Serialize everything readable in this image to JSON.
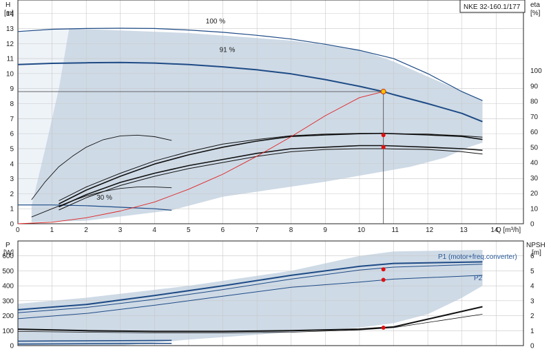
{
  "chart_data": [
    {
      "type": "line",
      "badge": "NKE 32-160.1/177",
      "xlabel": "Q [m³/h]",
      "ylabel_left_symbol": "H",
      "ylabel_left_unit": "[m]",
      "ylabel_right_symbol": "eta",
      "ylabel_right_unit": "[%]",
      "x_ticks": [
        "0",
        "1",
        "2",
        "3",
        "4",
        "5",
        "6",
        "7",
        "8",
        "9",
        "10",
        "11",
        "12",
        "13",
        "14"
      ],
      "y_left_ticks": [
        "0",
        "1",
        "2",
        "3",
        "4",
        "5",
        "6",
        "7",
        "8",
        "9",
        "10",
        "11",
        "12",
        "13",
        "14"
      ],
      "y_right_ticks": [
        "0",
        "10",
        "20",
        "30",
        "40",
        "50",
        "60",
        "70",
        "80",
        "90",
        "100"
      ],
      "xlim": [
        0,
        14.8
      ],
      "ylim_left": [
        0,
        14.9
      ],
      "ylim_right": [
        0,
        100
      ],
      "grid": true,
      "annotations": [
        {
          "text": "100 %",
          "x": 5.5,
          "y": 13.35
        },
        {
          "text": "91 %",
          "x": 5.9,
          "y": 11.45
        },
        {
          "text": "30 %",
          "x": 2.3,
          "y": 1.6
        }
      ],
      "operating_point": {
        "q": 10.7,
        "h": 8.8,
        "eta_points": [
          5.9,
          5.1
        ]
      },
      "envelope": [
        [
          0,
          12.8
        ],
        [
          1.5,
          13.0
        ],
        [
          5,
          12.7
        ],
        [
          8,
          12.2
        ],
        [
          10,
          11.6
        ],
        [
          11,
          10.8
        ],
        [
          12,
          9.8
        ],
        [
          13.6,
          8.2
        ],
        [
          13.6,
          5.4
        ],
        [
          13.2,
          5.1
        ],
        [
          12.5,
          4.4
        ],
        [
          11.5,
          3.8
        ],
        [
          9,
          2.8
        ],
        [
          6,
          1.8
        ],
        [
          4.5,
          0.9
        ],
        [
          2,
          0.2
        ],
        [
          0.4,
          0.1
        ],
        [
          0.4,
          1.2
        ],
        [
          0,
          1.2
        ]
      ],
      "series": [
        {
          "name": "100 %",
          "x": [
            0,
            1,
            2,
            3,
            4,
            5,
            6,
            7,
            8,
            9,
            10,
            11,
            12,
            13,
            13.6
          ],
          "y": [
            12.8,
            12.95,
            13.0,
            13.02,
            13.0,
            12.9,
            12.75,
            12.55,
            12.3,
            11.95,
            11.55,
            11.0,
            10.0,
            8.8,
            8.2
          ]
        },
        {
          "name": "91 %",
          "x": [
            0,
            1,
            2,
            3,
            4,
            5,
            6,
            7,
            8,
            9,
            10,
            10.7,
            11,
            12,
            13,
            13.6
          ],
          "y": [
            10.6,
            10.68,
            10.72,
            10.74,
            10.7,
            10.6,
            10.45,
            10.25,
            9.98,
            9.6,
            9.15,
            8.8,
            8.6,
            8.0,
            7.35,
            6.8
          ]
        },
        {
          "name": "30 %",
          "x": [
            0,
            1,
            2,
            3,
            4,
            4.5
          ],
          "y": [
            1.25,
            1.25,
            1.2,
            1.1,
            1.0,
            0.9
          ]
        },
        {
          "name": "",
          "axis": "left",
          "x": [
            0.4,
            0.8,
            1.2,
            1.6,
            2,
            2.5,
            3,
            3.5,
            4,
            4.5
          ],
          "y": [
            1.6,
            2.8,
            3.8,
            4.5,
            5.1,
            5.6,
            5.85,
            5.9,
            5.8,
            5.55
          ]
        },
        {
          "name": "",
          "axis": "left",
          "x": [
            0.4,
            1,
            1.5,
            2,
            2.5,
            3,
            3.5,
            4,
            4.5
          ],
          "y": [
            0.45,
            1.0,
            1.45,
            1.85,
            2.15,
            2.35,
            2.45,
            2.45,
            2.4
          ]
        },
        {
          "name": "",
          "axis": "right",
          "x": [
            1.2,
            2,
            3,
            4,
            5,
            6,
            7,
            8,
            9,
            10,
            10.7,
            11,
            12,
            13,
            13.6
          ],
          "y": [
            9,
            17,
            25,
            31,
            36,
            40,
            44,
            47,
            48.5,
            49,
            49,
            48.8,
            48.5,
            47,
            45.5
          ]
        },
        {
          "name": "",
          "axis": "right",
          "x": [
            1.2,
            2,
            3,
            4,
            5,
            6,
            7,
            8,
            9,
            10,
            10.7,
            11,
            12,
            13,
            13.6
          ],
          "y": [
            11,
            19,
            27,
            33,
            38,
            42,
            46,
            49,
            50,
            51,
            51,
            50.8,
            50,
            49,
            48
          ]
        },
        {
          "name": "",
          "axis": "right",
          "x": [
            1.2,
            2,
            3,
            4,
            5,
            6,
            7,
            8,
            9,
            10,
            10.7,
            11,
            12,
            13,
            13.6
          ],
          "y": [
            13,
            22,
            31,
            39,
            45,
            50,
            54,
            57,
            58,
            58.8,
            59,
            58.8,
            58,
            57,
            55
          ]
        },
        {
          "name": "",
          "axis": "right",
          "x": [
            1.2,
            2,
            3,
            4,
            5,
            6,
            7,
            8,
            9,
            10,
            10.7,
            11,
            12,
            13,
            13.6
          ],
          "y": [
            15,
            24,
            33,
            41,
            47,
            52,
            55,
            57.5,
            58.5,
            59,
            59,
            58.8,
            58.5,
            57.5,
            56.5
          ]
        },
        {
          "name": "",
          "axis": "left",
          "x": [
            0,
            1,
            2,
            3,
            4,
            5,
            6,
            7,
            8,
            9,
            10,
            10.7
          ],
          "y": [
            0,
            0.1,
            0.4,
            0.85,
            1.45,
            2.3,
            3.3,
            4.5,
            5.8,
            7.2,
            8.4,
            8.8
          ]
        }
      ]
    },
    {
      "type": "line",
      "ylabel_left_symbol": "P",
      "ylabel_left_unit": "[W]",
      "ylabel_right_symbol": "NPSH",
      "ylabel_right_unit": "[m]",
      "y_left_ticks": [
        "0",
        "100",
        "200",
        "300",
        "400",
        "500",
        "600"
      ],
      "y_right_ticks": [
        "0",
        "1",
        "2",
        "3",
        "4",
        "5",
        "6"
      ],
      "ylim_left": [
        0,
        700
      ],
      "ylim_right": [
        0,
        7
      ],
      "grid": true,
      "legend_texts": [
        "P1 (motor+freq.converter)",
        "P2"
      ],
      "envelope": [
        [
          0,
          280
        ],
        [
          2,
          320
        ],
        [
          5,
          400
        ],
        [
          8,
          500
        ],
        [
          10,
          600
        ],
        [
          11,
          630
        ],
        [
          13.6,
          640
        ],
        [
          13.6,
          400
        ],
        [
          13,
          320
        ],
        [
          12,
          210
        ],
        [
          11,
          150
        ],
        [
          10,
          120
        ],
        [
          8,
          90
        ],
        [
          5,
          40
        ],
        [
          3,
          0
        ],
        [
          0,
          0
        ]
      ],
      "operating_points": [
        {
          "x": 10.7,
          "y": 510
        },
        {
          "x": 10.7,
          "y": 440
        },
        {
          "x": 10.7,
          "y": 120
        }
      ],
      "series": [
        {
          "name": "",
          "x": [
            0,
            2,
            4,
            6,
            8,
            10,
            11,
            13.6
          ],
          "y": [
            240,
            275,
            335,
            400,
            470,
            530,
            550,
            560
          ]
        },
        {
          "name": "",
          "x": [
            0,
            2,
            4,
            6,
            8,
            10,
            11,
            13.6
          ],
          "y": [
            220,
            255,
            310,
            375,
            445,
            505,
            525,
            545
          ]
        },
        {
          "name": "",
          "x": [
            0,
            2,
            4,
            6,
            8,
            10,
            11,
            13.6
          ],
          "y": [
            180,
            215,
            270,
            330,
            390,
            425,
            445,
            470
          ]
        },
        {
          "name": "",
          "x": [
            0,
            2,
            4,
            6,
            8,
            10,
            11,
            13.6
          ],
          "y": [
            110,
            100,
            95,
            95,
            100,
            110,
            125,
            260
          ]
        },
        {
          "name": "",
          "x": [
            0,
            2,
            4,
            6,
            8,
            10,
            11,
            13.6
          ],
          "y": [
            95,
            90,
            85,
            85,
            90,
            105,
            120,
            210
          ]
        },
        {
          "name": "",
          "x": [
            0,
            4.5
          ],
          "y": [
            30,
            35
          ]
        },
        {
          "name": "",
          "x": [
            0,
            4.5
          ],
          "y": [
            10,
            15
          ]
        }
      ]
    }
  ]
}
